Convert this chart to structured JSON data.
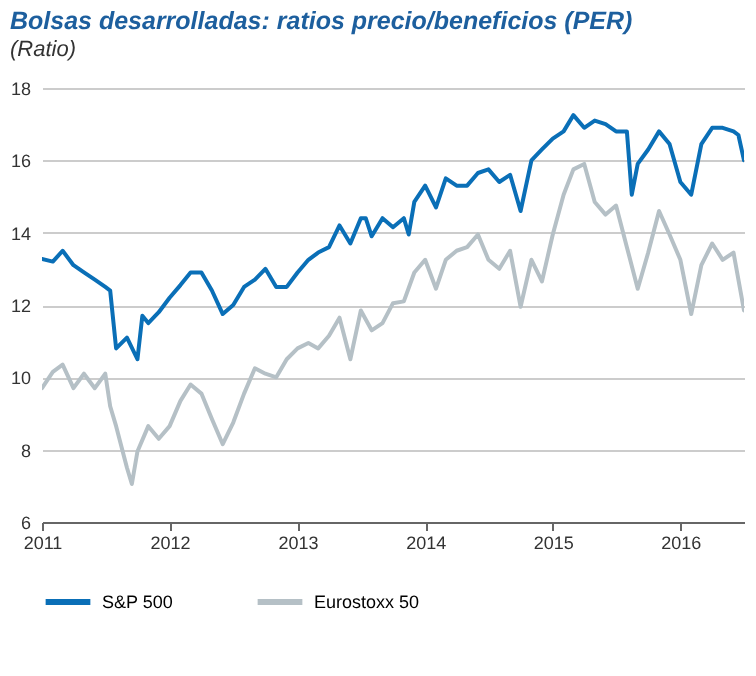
{
  "chart_data": {
    "type": "line",
    "title": "Bolsas desarrolladas: ratios precio/beneficios (PER)",
    "subtitle": "(Ratio)",
    "xlim": [
      "2011-01",
      "2016-07"
    ],
    "xticks": [
      "2011",
      "2012",
      "2013",
      "2014",
      "2015",
      "2016"
    ],
    "ylim": [
      6,
      18
    ],
    "yticks": [
      6,
      8,
      10,
      12,
      14,
      16,
      18
    ],
    "grid": "y",
    "legend": "bottom",
    "marker": "none",
    "line_style": "solid",
    "series": [
      {
        "name": "S&P 500",
        "color": "#0a6fb7",
        "x": [
          "2011-01",
          "2011-02",
          "2011-03",
          "2011-04",
          "2011-05",
          "2011-06",
          "2011-07",
          "2011-07-15",
          "2011-08",
          "2011-09",
          "2011-10",
          "2011-10-15",
          "2011-11",
          "2011-12",
          "2012-01",
          "2012-02",
          "2012-03",
          "2012-04",
          "2012-05",
          "2012-06",
          "2012-07",
          "2012-08",
          "2012-09",
          "2012-10",
          "2012-11",
          "2012-12",
          "2013-01",
          "2013-02",
          "2013-03",
          "2013-04",
          "2013-05",
          "2013-06",
          "2013-07",
          "2013-07-15",
          "2013-08",
          "2013-09",
          "2013-10",
          "2013-11",
          "2013-11-15",
          "2013-12",
          "2014-01",
          "2014-02",
          "2014-03",
          "2014-04",
          "2014-05",
          "2014-06",
          "2014-07",
          "2014-08",
          "2014-09",
          "2014-10",
          "2014-11",
          "2014-12",
          "2015-01",
          "2015-02",
          "2015-03",
          "2015-04",
          "2015-05",
          "2015-06",
          "2015-07",
          "2015-08",
          "2015-08-15",
          "2015-09",
          "2015-10",
          "2015-11",
          "2015-12",
          "2016-01",
          "2016-02",
          "2016-03",
          "2016-04",
          "2016-05",
          "2016-06",
          "2016-06-15",
          "2016-07"
        ],
        "values": [
          13.27,
          13.2,
          13.5,
          13.1,
          12.9,
          12.7,
          12.5,
          12.4,
          10.8,
          11.1,
          10.5,
          11.7,
          11.5,
          11.8,
          12.2,
          12.55,
          12.9,
          12.9,
          12.4,
          11.75,
          12.0,
          12.5,
          12.7,
          13.0,
          12.5,
          12.5,
          12.9,
          13.25,
          13.45,
          13.6,
          14.2,
          13.7,
          14.4,
          14.4,
          13.9,
          14.4,
          14.15,
          14.4,
          13.95,
          14.85,
          15.3,
          14.7,
          15.5,
          15.3,
          15.3,
          15.65,
          15.75,
          15.4,
          15.6,
          14.6,
          16.0,
          16.3,
          16.6,
          16.8,
          17.25,
          16.9,
          17.1,
          17.0,
          16.8,
          16.8,
          15.05,
          15.9,
          16.3,
          16.8,
          16.45,
          15.4,
          15.05,
          16.45,
          16.9,
          16.9,
          16.8,
          16.7,
          16.0
        ]
      },
      {
        "name": "Eurostoxx 50",
        "color": "#b5c0c6",
        "x": [
          "2011-01",
          "2011-02",
          "2011-03",
          "2011-04",
          "2011-05",
          "2011-06",
          "2011-07",
          "2011-07-15",
          "2011-08",
          "2011-09",
          "2011-09-15",
          "2011-10",
          "2011-11",
          "2011-12",
          "2012-01",
          "2012-02",
          "2012-03",
          "2012-04",
          "2012-05",
          "2012-06",
          "2012-07",
          "2012-08",
          "2012-09",
          "2012-10",
          "2012-11",
          "2012-12",
          "2013-01",
          "2013-02",
          "2013-03",
          "2013-04",
          "2013-05",
          "2013-06",
          "2013-07",
          "2013-08",
          "2013-09",
          "2013-10",
          "2013-11",
          "2013-12",
          "2014-01",
          "2014-02",
          "2014-03",
          "2014-04",
          "2014-05",
          "2014-06",
          "2014-07",
          "2014-08",
          "2014-09",
          "2014-10",
          "2014-11",
          "2014-12",
          "2015-01",
          "2015-02",
          "2015-03",
          "2015-04",
          "2015-05",
          "2015-06",
          "2015-07",
          "2015-08",
          "2015-09",
          "2015-10",
          "2015-11",
          "2015-12",
          "2016-01",
          "2016-02",
          "2016-03",
          "2016-04",
          "2016-05",
          "2016-06",
          "2016-07"
        ],
        "values": [
          9.7,
          10.15,
          10.35,
          9.7,
          10.1,
          9.7,
          10.1,
          9.2,
          8.65,
          7.5,
          7.05,
          7.95,
          8.65,
          8.3,
          8.65,
          9.35,
          9.8,
          9.55,
          8.85,
          8.15,
          8.75,
          9.55,
          10.25,
          10.1,
          10.0,
          10.5,
          10.8,
          10.95,
          10.8,
          11.15,
          11.65,
          10.5,
          11.85,
          11.3,
          11.5,
          12.05,
          12.1,
          12.9,
          13.25,
          12.45,
          13.25,
          13.5,
          13.6,
          13.95,
          13.25,
          13.0,
          13.5,
          11.95,
          13.25,
          12.65,
          13.95,
          15.05,
          15.75,
          15.9,
          14.85,
          14.5,
          14.75,
          13.6,
          12.45,
          13.45,
          14.6,
          13.95,
          13.25,
          11.75,
          13.1,
          13.7,
          13.25,
          13.45,
          11.85
        ]
      }
    ]
  }
}
